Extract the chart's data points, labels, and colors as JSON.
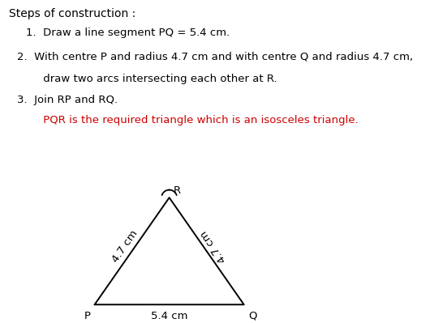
{
  "title": "Steps of construction :",
  "step1": "1.  Draw a line segment PQ = 5.4 cm.",
  "step2": "2.  With centre P and radius 4.7 cm and with centre Q and radius 4.7 cm,",
  "step2b": "     draw two arcs intersecting each other at R.",
  "step3": "3.  Join RP and RQ.",
  "step3b": "     PQR is the required triangle which is an isosceles triangle.",
  "P": [
    0.0,
    0.0
  ],
  "Q": [
    5.4,
    0.0
  ],
  "R": [
    2.7,
    3.876
  ],
  "label_PQ": "5.4 cm",
  "label_PR": "4.7 cm",
  "label_QR": "4.7 cm",
  "label_P": "P",
  "label_Q": "Q",
  "label_R": "R",
  "text_color_black": "#000000",
  "text_color_red": "#cc0000",
  "background_color": "#ffffff",
  "line_color": "#000000",
  "font_size_title": 10,
  "font_size_steps": 9.5,
  "font_size_label": 9.5
}
